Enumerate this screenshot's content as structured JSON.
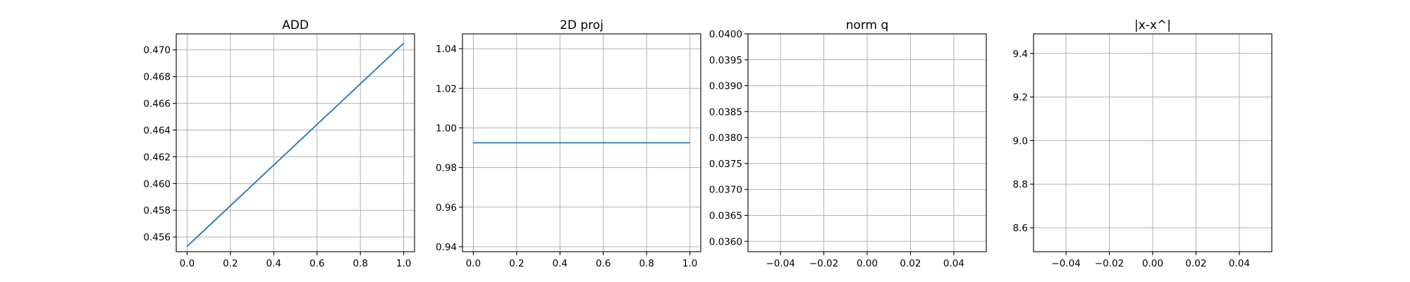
{
  "chart_data": [
    {
      "type": "line",
      "title": "ADD",
      "xlabel": "",
      "ylabel": "",
      "xlim": [
        -0.05,
        1.05
      ],
      "ylim": [
        0.4549,
        0.4712
      ],
      "xticks": [
        0.0,
        0.2,
        0.4,
        0.6,
        0.8,
        1.0
      ],
      "xtick_labels": [
        "0.0",
        "0.2",
        "0.4",
        "0.6",
        "0.8",
        "1.0"
      ],
      "yticks": [
        0.456,
        0.458,
        0.46,
        0.462,
        0.464,
        0.466,
        0.468,
        0.47
      ],
      "ytick_labels": [
        "0.456",
        "0.458",
        "0.460",
        "0.462",
        "0.464",
        "0.466",
        "0.468",
        "0.470"
      ],
      "grid": true,
      "series": [
        {
          "x": [
            0.0,
            1.0
          ],
          "y": [
            0.4553,
            0.4705
          ],
          "color": "#1f77b4"
        }
      ]
    },
    {
      "type": "line",
      "title": "2D proj",
      "xlabel": "",
      "ylabel": "",
      "xlim": [
        -0.05,
        1.05
      ],
      "ylim": [
        0.9375,
        1.0475
      ],
      "xticks": [
        0.0,
        0.2,
        0.4,
        0.6,
        0.8,
        1.0
      ],
      "xtick_labels": [
        "0.0",
        "0.2",
        "0.4",
        "0.6",
        "0.8",
        "1.0"
      ],
      "yticks": [
        0.94,
        0.96,
        0.98,
        1.0,
        1.02,
        1.04
      ],
      "ytick_labels": [
        "0.94",
        "0.96",
        "0.98",
        "1.00",
        "1.02",
        "1.04"
      ],
      "grid": true,
      "series": [
        {
          "x": [
            0.0,
            1.0
          ],
          "y": [
            0.9925,
            0.9925
          ],
          "color": "#1f77b4"
        }
      ]
    },
    {
      "type": "line",
      "title": "norm q",
      "xlabel": "",
      "ylabel": "",
      "xlim": [
        -0.055,
        0.055
      ],
      "ylim": [
        0.0358,
        0.04
      ],
      "xticks": [
        -0.04,
        -0.02,
        0.0,
        0.02,
        0.04
      ],
      "xtick_labels": [
        "−0.04",
        "−0.02",
        "0.00",
        "0.02",
        "0.04"
      ],
      "yticks": [
        0.036,
        0.0365,
        0.037,
        0.0375,
        0.038,
        0.0385,
        0.039,
        0.0395,
        0.04
      ],
      "ytick_labels": [
        "0.0360",
        "0.0365",
        "0.0370",
        "0.0375",
        "0.0380",
        "0.0385",
        "0.0390",
        "0.0395",
        "0.0400"
      ],
      "grid": true,
      "series": []
    },
    {
      "type": "line",
      "title": "|x-x^|",
      "xlabel": "",
      "ylabel": "",
      "xlim": [
        -0.055,
        0.055
      ],
      "ylim": [
        8.49,
        9.49
      ],
      "xticks": [
        -0.04,
        -0.02,
        0.0,
        0.02,
        0.04
      ],
      "xtick_labels": [
        "−0.04",
        "−0.02",
        "0.00",
        "0.02",
        "0.04"
      ],
      "yticks": [
        8.6,
        8.8,
        9.0,
        9.2,
        9.4
      ],
      "ytick_labels": [
        "8.6",
        "8.8",
        "9.0",
        "9.2",
        "9.4"
      ],
      "grid": true,
      "series": []
    }
  ]
}
